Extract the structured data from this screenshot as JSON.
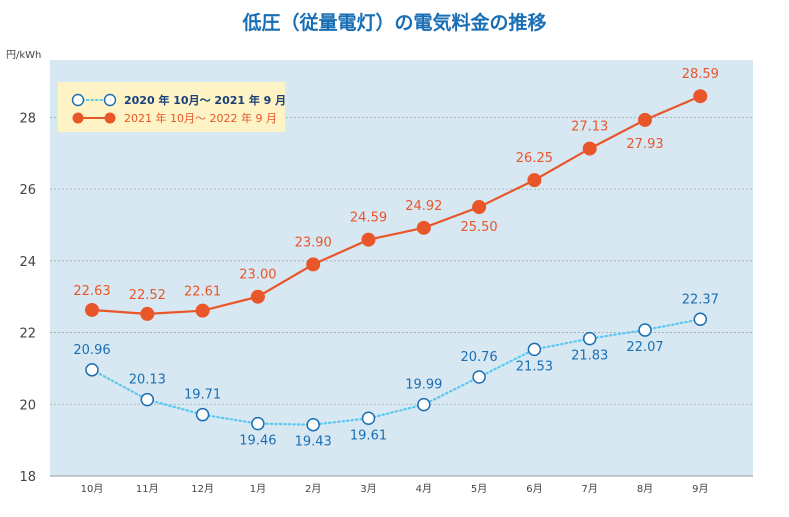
{
  "chart_data": {
    "type": "line",
    "title": "低圧（従量電灯）の電気料金の推移",
    "ylabel": "円/kWh",
    "xlabel": "",
    "categories": [
      "10月",
      "11月",
      "12月",
      "1月",
      "2月",
      "3月",
      "4月",
      "5月",
      "6月",
      "7月",
      "8月",
      "9月"
    ],
    "ylim": [
      18,
      29.6
    ],
    "yticks": [
      18,
      20,
      22,
      24,
      26,
      28
    ],
    "grid": true,
    "legend_position": "top-left",
    "series": [
      {
        "name": "2020 年 10月〜 2021 年 9 月",
        "values": [
          20.96,
          20.13,
          19.71,
          19.46,
          19.43,
          19.61,
          19.99,
          20.76,
          21.53,
          21.83,
          22.07,
          22.37
        ],
        "labels": [
          "20.96",
          "20.13",
          "19.71",
          "19.46",
          "19.43",
          "19.61",
          "19.99",
          "20.76",
          "21.53",
          "21.83",
          "22.07",
          "22.37"
        ],
        "color": "#5bc8f0",
        "label_color": "#1a6fb4",
        "marker": "hollow",
        "line_style": "dotted"
      },
      {
        "name": "2021 年 10月〜 2022 年 9 月",
        "values": [
          22.63,
          22.52,
          22.61,
          23.0,
          23.9,
          24.59,
          24.92,
          25.5,
          26.25,
          27.13,
          27.93,
          28.59
        ],
        "labels": [
          "22.63",
          "22.52",
          "22.61",
          "23.00",
          "23.90",
          "24.59",
          "24.92",
          "25.50",
          "26.25",
          "27.13",
          "27.93",
          "28.59"
        ],
        "color": "#e8562a",
        "label_color": "#e8562a",
        "marker": "filled",
        "line_style": "solid"
      }
    ],
    "colors": {
      "plot_background": "#d8e8f3",
      "legend_background": "#fdf3c4",
      "title": "#1a6fb4",
      "axis_text": "#444444",
      "gridline": "#9aa8b2"
    }
  }
}
